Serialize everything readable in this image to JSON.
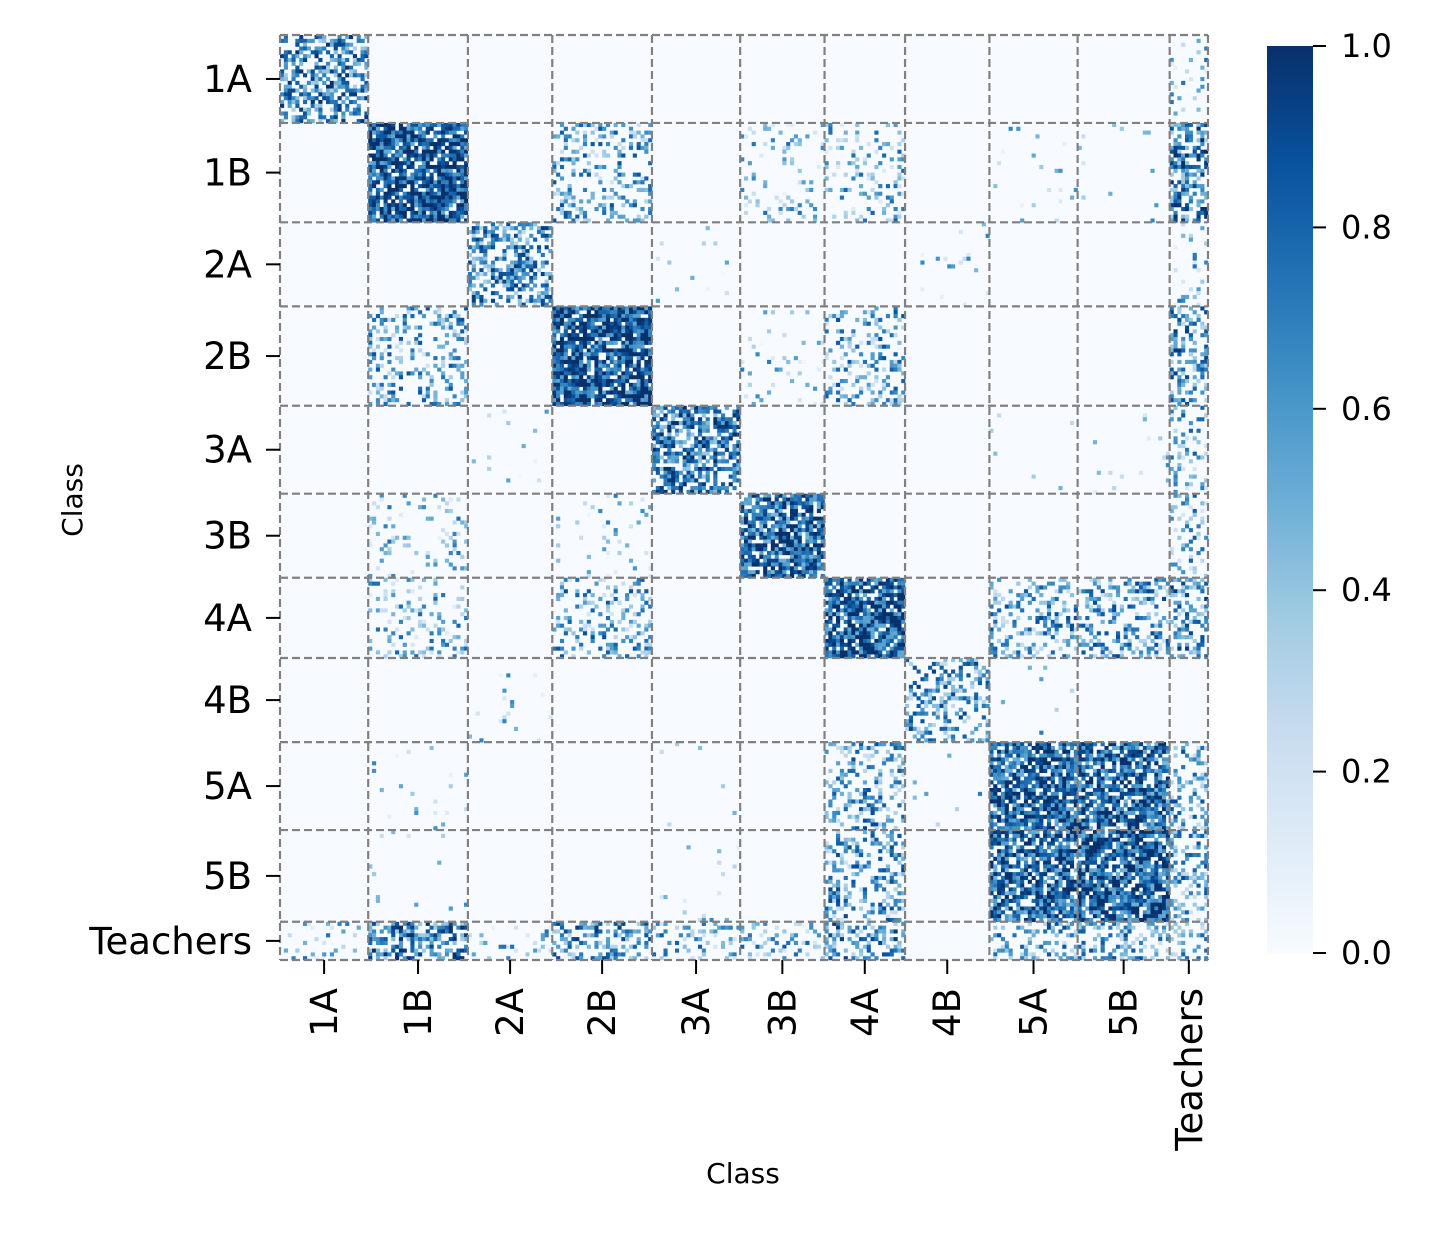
{
  "chart_data": {
    "type": "heatmap",
    "title": "",
    "xlabel": "Class",
    "ylabel": "Class",
    "classes": [
      "1A",
      "1B",
      "2A",
      "2B",
      "3A",
      "3B",
      "4A",
      "4B",
      "5A",
      "5B",
      "Teachers"
    ],
    "class_sizes": [
      23,
      26,
      22,
      26,
      23,
      22,
      21,
      22,
      23,
      24,
      10
    ],
    "colorbar": {
      "min": 0.0,
      "max": 1.0,
      "ticks": [
        0.0,
        0.2,
        0.4,
        0.6,
        0.8,
        1.0
      ],
      "tick_labels": [
        "0.0",
        "0.2",
        "0.4",
        "0.6",
        "0.8",
        "1.0"
      ],
      "colormap": "Blues",
      "low_color": "#f7fbff",
      "high_color": "#08306b"
    },
    "block_density": [
      [
        0.55,
        0,
        0,
        0,
        0,
        0,
        0,
        0,
        0,
        0,
        0.12
      ],
      [
        0,
        0.85,
        0,
        0.3,
        0,
        0.12,
        0.2,
        0,
        0.03,
        0.02,
        0.55
      ],
      [
        0,
        0.02,
        0.45,
        0,
        0.02,
        0,
        0,
        0.03,
        0,
        0,
        0.12
      ],
      [
        0,
        0.35,
        0,
        0.85,
        0,
        0.05,
        0.3,
        0,
        0,
        0,
        0.45
      ],
      [
        0,
        0,
        0,
        0,
        0.65,
        0,
        0,
        0,
        0.01,
        0.02,
        0.25
      ],
      [
        0,
        0.2,
        0,
        0.05,
        0,
        0.75,
        0,
        0,
        0,
        0,
        0.25
      ],
      [
        0,
        0.3,
        0,
        0.25,
        0,
        0,
        0.85,
        0,
        0.35,
        0.35,
        0.45
      ],
      [
        0.03,
        0,
        0.1,
        0,
        0,
        0,
        0,
        0.4,
        0.02,
        0,
        0
      ],
      [
        0,
        0.02,
        0,
        0,
        0,
        0,
        0.45,
        0,
        0.8,
        0.75,
        0.35
      ],
      [
        0,
        0,
        0,
        0,
        0.01,
        0,
        0.4,
        0,
        0.7,
        0.8,
        0.35
      ],
      [
        0.15,
        0.5,
        0.55,
        0.5,
        0.25,
        0.25,
        0.45,
        0,
        0.35,
        0.35,
        0.35
      ]
    ],
    "grid": false,
    "block_separators": "dashed gray",
    "legend": "colorbar right"
  }
}
